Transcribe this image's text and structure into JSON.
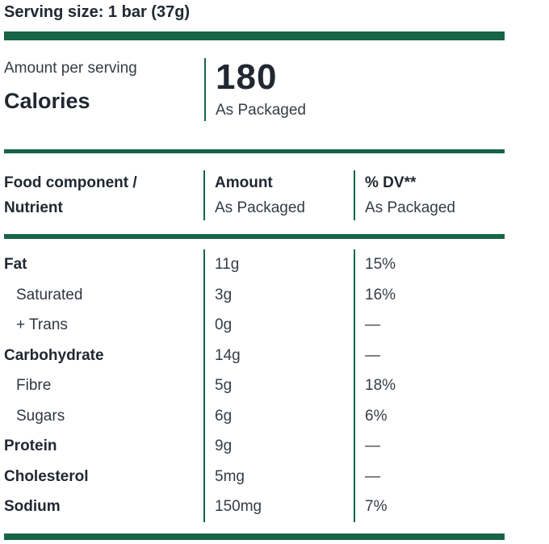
{
  "serving_size": "Serving size: 1 bar (37g)",
  "calories": {
    "amount_per_serving_label": "Amount per serving",
    "label": "Calories",
    "value": "180",
    "basis": "As Packaged"
  },
  "header": {
    "col1_line1": "Food component /",
    "col1_line2": "Nutrient",
    "col2_line1": "Amount",
    "col2_line2": "As Packaged",
    "col3_line1": "% DV**",
    "col3_line2": "As Packaged"
  },
  "table": {
    "rows": [
      {
        "name": "Fat",
        "amount": "11g",
        "dv": "15%"
      },
      {
        "name": "Saturated",
        "amount": "3g",
        "dv": "16%"
      },
      {
        "name": "+ Trans",
        "amount": "0g",
        "dv": "—"
      },
      {
        "name": "Carbohydrate",
        "amount": "14g",
        "dv": "—"
      },
      {
        "name": "Fibre",
        "amount": "5g",
        "dv": "18%"
      },
      {
        "name": "Sugars",
        "amount": "6g",
        "dv": "6%"
      },
      {
        "name": "Protein",
        "amount": "9g",
        "dv": "—"
      },
      {
        "name": "Cholesterol",
        "amount": "5mg",
        "dv": "—"
      },
      {
        "name": "Sodium",
        "amount": "150mg",
        "dv": "7%"
      }
    ]
  },
  "colors": {
    "accent_green": "#166546",
    "text_bold": "#212832",
    "text_regular": "#363c45"
  }
}
